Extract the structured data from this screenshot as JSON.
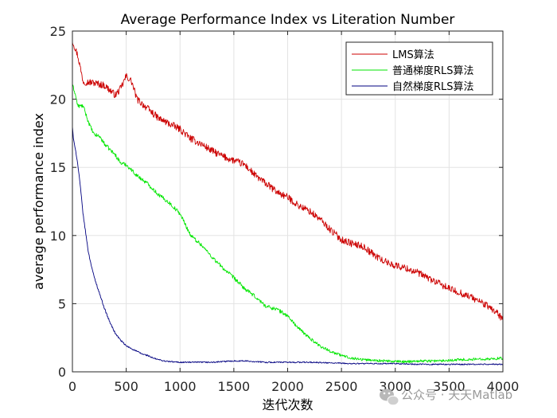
{
  "chart_data": {
    "type": "line",
    "title": "Average Performance Index vs Literation Number",
    "xlabel": "迭代次数",
    "ylabel": "average performance index",
    "xlim": [
      0,
      4000
    ],
    "ylim": [
      0,
      25
    ],
    "xticks": [
      0,
      500,
      1000,
      1500,
      2000,
      2500,
      3000,
      3500,
      4000
    ],
    "yticks": [
      0,
      5,
      10,
      15,
      20,
      25
    ],
    "grid": true,
    "legend_position": "top-right",
    "series": [
      {
        "name": "LMS算法",
        "color": "#cc0000",
        "x": [
          0,
          50,
          100,
          200,
          300,
          400,
          450,
          500,
          550,
          600,
          700,
          800,
          900,
          1000,
          1100,
          1200,
          1300,
          1400,
          1500,
          1600,
          1700,
          1800,
          1900,
          2000,
          2100,
          2200,
          2300,
          2400,
          2500,
          2600,
          2700,
          2800,
          2900,
          3000,
          3100,
          3200,
          3300,
          3400,
          3500,
          3600,
          3700,
          3800,
          3900,
          3950,
          4000
        ],
        "y": [
          24.3,
          23.2,
          21.3,
          21.2,
          21.0,
          20.3,
          20.8,
          21.7,
          21.3,
          20.0,
          19.3,
          18.6,
          18.2,
          17.8,
          17.1,
          16.7,
          16.2,
          15.8,
          15.5,
          15.2,
          14.4,
          13.8,
          13.2,
          12.8,
          12.2,
          11.8,
          11.2,
          10.4,
          9.7,
          9.4,
          9.2,
          8.6,
          8.1,
          7.8,
          7.6,
          7.3,
          6.9,
          6.5,
          6.1,
          5.8,
          5.5,
          5.1,
          4.6,
          4.3,
          3.8
        ]
      },
      {
        "name": "普通梯度RLS算法",
        "color": "#00e600",
        "x": [
          0,
          20,
          50,
          100,
          150,
          200,
          250,
          300,
          400,
          450,
          500,
          600,
          700,
          800,
          900,
          1000,
          1100,
          1200,
          1300,
          1400,
          1500,
          1600,
          1700,
          1800,
          1900,
          2000,
          2100,
          2200,
          2300,
          2400,
          2500,
          2600,
          2700,
          2800,
          2900,
          3000,
          3100,
          3200,
          3300,
          3400,
          3500,
          3600,
          3700,
          3800,
          3900,
          4000
        ],
        "y": [
          21.0,
          20.6,
          19.5,
          19.5,
          18.3,
          17.4,
          17.3,
          16.7,
          15.9,
          15.3,
          15.2,
          14.4,
          13.8,
          13.0,
          12.4,
          11.6,
          10.0,
          9.3,
          8.4,
          7.6,
          6.9,
          6.1,
          5.5,
          4.8,
          4.6,
          4.1,
          3.2,
          2.5,
          1.9,
          1.5,
          1.2,
          1.0,
          0.9,
          0.85,
          0.8,
          0.75,
          0.75,
          0.8,
          0.8,
          0.8,
          0.85,
          0.9,
          0.9,
          0.95,
          0.95,
          1.0
        ]
      },
      {
        "name": "自然梯度RLS算法",
        "color": "#000080",
        "x": [
          0,
          10,
          25,
          50,
          75,
          100,
          150,
          200,
          250,
          300,
          350,
          400,
          450,
          500,
          550,
          600,
          650,
          700,
          750,
          800,
          850,
          900,
          1000,
          1100,
          1200,
          1300,
          1400,
          1500,
          1600,
          1700,
          1800,
          1900,
          2000,
          2200,
          2400,
          2600,
          2800,
          3000,
          3200,
          3400,
          3600,
          3800,
          4000
        ],
        "y": [
          18.0,
          17.0,
          16.5,
          15.2,
          13.5,
          11.5,
          8.7,
          7.0,
          5.8,
          4.6,
          3.6,
          2.8,
          2.3,
          1.9,
          1.7,
          1.5,
          1.3,
          1.2,
          1.0,
          0.9,
          0.8,
          0.75,
          0.7,
          0.7,
          0.7,
          0.7,
          0.75,
          0.8,
          0.8,
          0.75,
          0.7,
          0.7,
          0.7,
          0.7,
          0.65,
          0.6,
          0.6,
          0.6,
          0.55,
          0.55,
          0.55,
          0.55,
          0.55
        ]
      }
    ]
  },
  "watermark": {
    "icon": "wechat-icon",
    "text": "公众号 · 天天Matlab"
  }
}
